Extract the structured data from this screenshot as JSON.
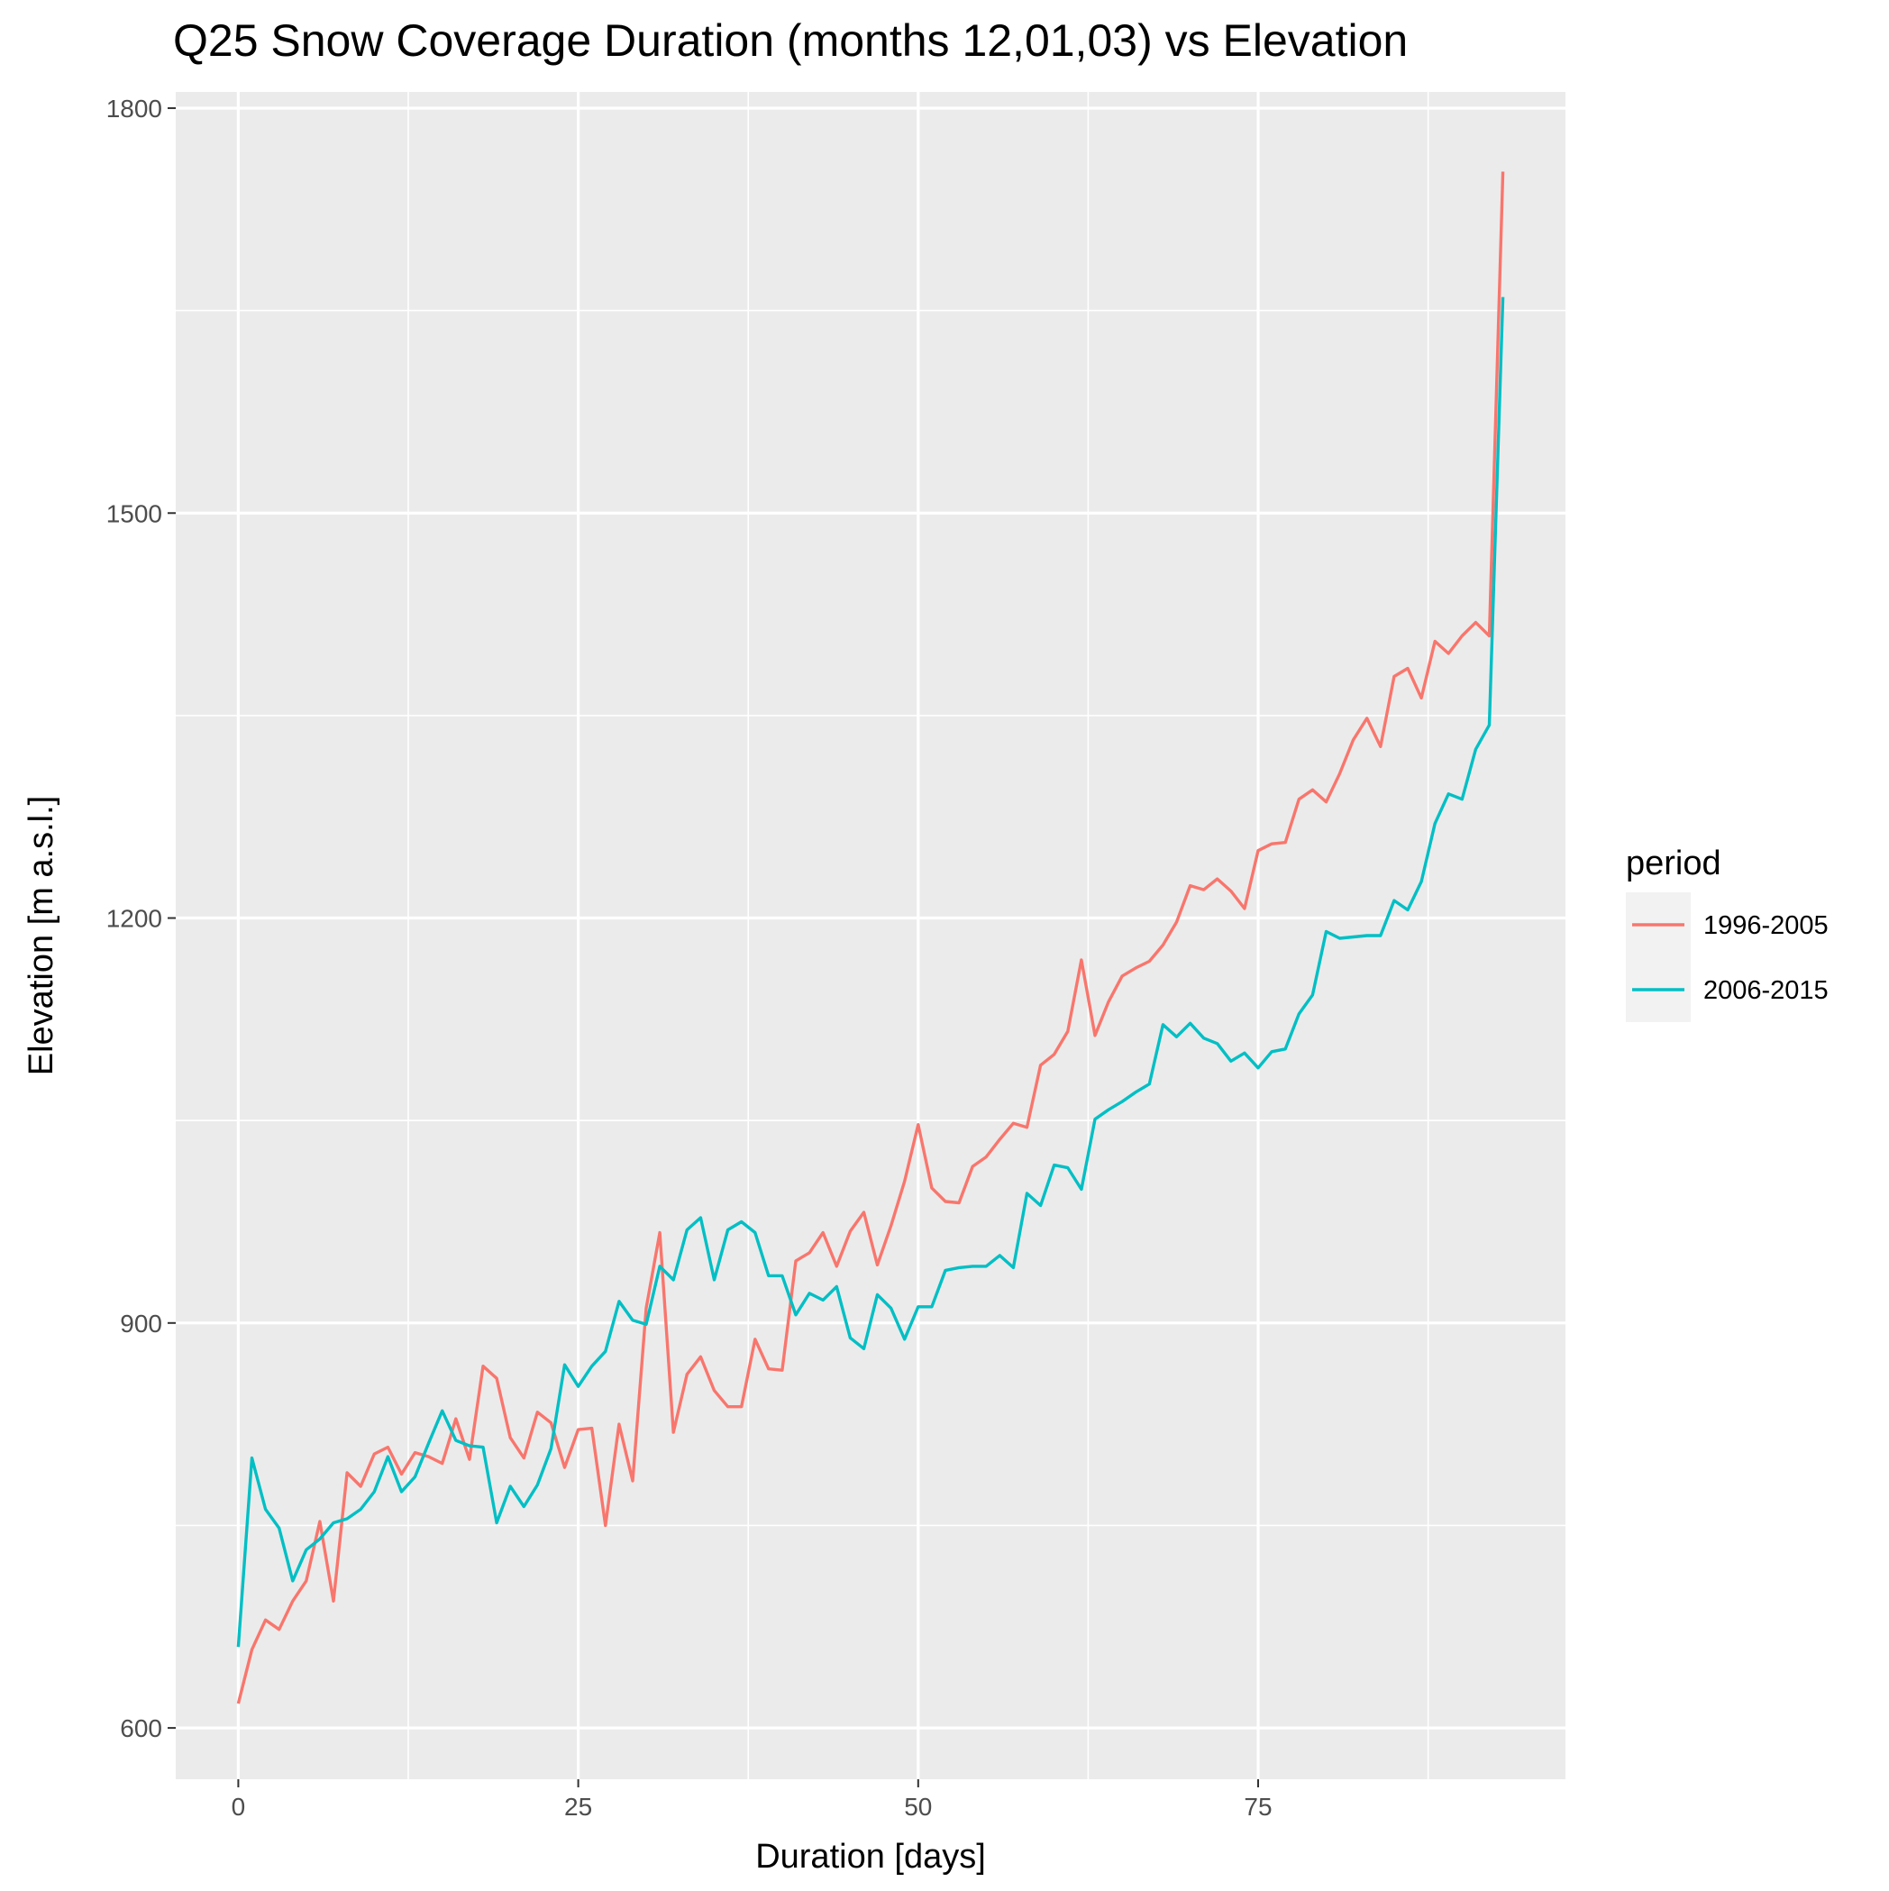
{
  "chart_data": {
    "type": "line",
    "title": "Q25 Snow Coverage Duration (months 12,01,03) vs Elevation",
    "xlabel": "Duration [days]",
    "ylabel": "Elevation [m a.s.l.]",
    "xlim": [
      -4.6,
      97.6
    ],
    "ylim": [
      562,
      1812
    ],
    "xticks": [
      0,
      25,
      50,
      75
    ],
    "xtick_labels": [
      "0",
      "25",
      "50",
      "75"
    ],
    "xminor": [
      12.5,
      37.5,
      62.5,
      87.5
    ],
    "yticks": [
      600,
      900,
      1200,
      1500,
      1800
    ],
    "ytick_labels": [
      "600",
      "900",
      "1200",
      "1500",
      "1800"
    ],
    "yminor": [
      750,
      1050,
      1350,
      1650
    ],
    "grid": true,
    "legend": {
      "title": "period",
      "position": "right"
    },
    "series": [
      {
        "name": "1996-2005",
        "color": "#F8766D",
        "x": [
          0,
          1,
          2,
          3,
          4,
          5,
          6,
          7,
          8,
          9,
          10,
          11,
          12,
          13,
          14,
          15,
          16,
          17,
          18,
          19,
          20,
          21,
          22,
          23,
          24,
          25,
          26,
          27,
          28,
          29,
          30,
          31,
          32,
          33,
          34,
          35,
          36,
          37,
          38,
          39,
          40,
          41,
          42,
          43,
          44,
          45,
          46,
          47,
          48,
          49,
          50,
          51,
          52,
          53,
          54,
          55,
          56,
          57,
          58,
          59,
          60,
          61,
          62,
          63,
          64,
          65,
          66,
          67,
          68,
          69,
          70,
          71,
          72,
          73,
          74,
          75,
          76,
          77,
          78,
          79,
          80,
          81,
          82,
          83,
          84,
          85,
          86,
          87,
          88,
          89,
          90,
          91,
          92,
          93
        ],
        "values": [
          618,
          658,
          680,
          673,
          694,
          709,
          753,
          694,
          789,
          779,
          803,
          808,
          788,
          804,
          801,
          796,
          829,
          799,
          868,
          859,
          815,
          800,
          834,
          826,
          793,
          821,
          822,
          750,
          825,
          783,
          911,
          967,
          819,
          862,
          875,
          850,
          838,
          838,
          888,
          866,
          865,
          946,
          952,
          967,
          942,
          968,
          982,
          943,
          972,
          1005,
          1047,
          1000,
          990,
          989,
          1016,
          1023,
          1036,
          1048,
          1045,
          1091,
          1099,
          1116,
          1169,
          1113,
          1138,
          1157,
          1163,
          1168,
          1180,
          1197,
          1224,
          1221,
          1229,
          1220,
          1207,
          1250,
          1255,
          1256,
          1288,
          1295,
          1286,
          1307,
          1332,
          1348,
          1327,
          1379,
          1385,
          1363,
          1405,
          1396,
          1409,
          1419,
          1409,
          1753
        ]
      },
      {
        "name": "2006-2015",
        "color": "#00BFC4",
        "x": [
          0,
          1,
          2,
          3,
          4,
          5,
          6,
          7,
          8,
          9,
          10,
          11,
          12,
          13,
          14,
          15,
          16,
          17,
          18,
          19,
          20,
          21,
          22,
          23,
          24,
          25,
          26,
          27,
          28,
          29,
          30,
          31,
          32,
          33,
          34,
          35,
          36,
          37,
          38,
          39,
          40,
          41,
          42,
          43,
          44,
          45,
          46,
          47,
          48,
          49,
          50,
          51,
          52,
          53,
          54,
          55,
          56,
          57,
          58,
          59,
          60,
          61,
          62,
          63,
          64,
          65,
          66,
          67,
          68,
          69,
          70,
          71,
          72,
          73,
          74,
          75,
          76,
          77,
          78,
          79,
          80,
          81,
          82,
          83,
          84,
          85,
          86,
          87,
          88,
          89,
          90,
          91,
          92,
          93
        ],
        "values": [
          660,
          800,
          762,
          748,
          709,
          732,
          740,
          752,
          755,
          762,
          775,
          801,
          775,
          786,
          811,
          835,
          813,
          809,
          808,
          752,
          779,
          764,
          780,
          807,
          869,
          853,
          868,
          879,
          916,
          902,
          899,
          942,
          932,
          969,
          978,
          932,
          969,
          975,
          967,
          935,
          935,
          906,
          922,
          917,
          927,
          889,
          881,
          921,
          911,
          888,
          912,
          912,
          939,
          941,
          942,
          942,
          950,
          941,
          996,
          987,
          1017,
          1015,
          999,
          1051,
          1058,
          1064,
          1071,
          1077,
          1121,
          1112,
          1122,
          1111,
          1107,
          1094,
          1100,
          1089,
          1101,
          1103,
          1129,
          1143,
          1190,
          1185,
          1186,
          1187,
          1187,
          1213,
          1206,
          1227,
          1270,
          1292,
          1288,
          1325,
          1343,
          1660
        ]
      }
    ]
  }
}
